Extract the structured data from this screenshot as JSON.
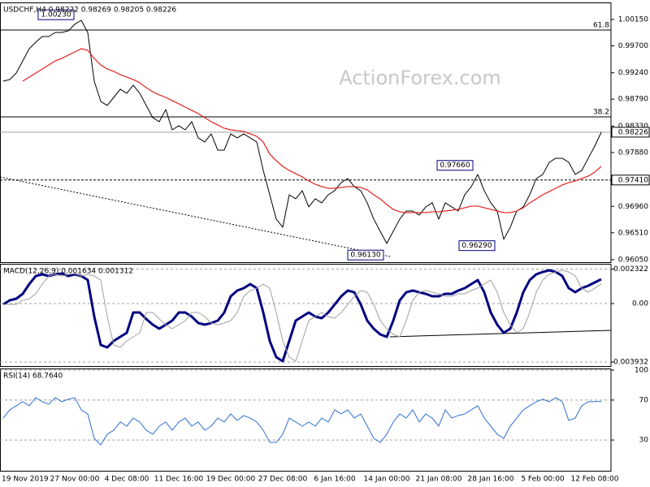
{
  "chart_data": [
    {
      "type": "line",
      "title": "USDCHF,H4  0.98222 0.98269 0.98205 0.98226",
      "watermark": "ActionForex.com",
      "categories": [
        "19 Nov 2019",
        null,
        null,
        null,
        null,
        null,
        null,
        null,
        null,
        null,
        null,
        "27 Nov 00:00",
        null,
        null,
        null,
        null,
        null,
        null,
        null,
        "4 Dec 08:00",
        null,
        null,
        null,
        null,
        null,
        null,
        null,
        "11 Dec 16:00",
        null,
        null,
        null,
        null,
        null,
        null,
        null,
        "19 Dec 00:00",
        null,
        null,
        null,
        null,
        null,
        null,
        null,
        "27 Dec 08:00",
        null,
        null,
        null,
        null,
        null,
        null,
        null,
        "6 Jan 16:00",
        null,
        null,
        null,
        null,
        null,
        null,
        null,
        "14 Jan 00:00",
        null,
        null,
        null,
        null,
        null,
        null,
        null,
        "21 Jan 08:00",
        null,
        null,
        null,
        null,
        null,
        null,
        null,
        "28 Jan 16:00",
        null,
        null,
        null,
        null,
        null,
        null,
        null,
        "5 Feb 00:00",
        null,
        null,
        null,
        null,
        null,
        null,
        null,
        "12 Feb 08:00",
        null
      ],
      "series": [
        {
          "color": "#000000",
          "line_width": 1,
          "values": [
            0.99097,
            0.99125,
            0.99236,
            0.99444,
            0.99651,
            0.99762,
            0.99859,
            0.99859,
            0.99928,
            0.99928,
            0.99956,
            1.00067,
            1.00136,
            0.99928,
            0.99097,
            0.98751,
            0.98682,
            0.9882,
            0.98959,
            0.9889,
            0.99028,
            0.9889,
            0.98682,
            0.98474,
            0.98405,
            0.98613,
            0.98266,
            0.98336,
            0.98266,
            0.98405,
            0.98128,
            0.98059,
            0.98197,
            0.9792,
            0.9792,
            0.98197,
            0.98128,
            0.98197,
            0.98128,
            0.98059,
            0.97574,
            0.97158,
            0.96743,
            0.96604,
            0.97158,
            0.97089,
            0.97228,
            0.96951,
            0.97089,
            0.9702,
            0.97158,
            0.97228,
            0.97366,
            0.97435,
            0.97297,
            0.97228,
            0.9702,
            0.96743,
            0.96535,
            0.96327,
            0.96535,
            0.96743,
            0.96881,
            0.96881,
            0.96812,
            0.96951,
            0.9702,
            0.96743,
            0.9702,
            0.96951,
            0.96881,
            0.97158,
            0.97297,
            0.97505,
            0.97228,
            0.9702,
            0.96881,
            0.96397,
            0.96604,
            0.96881,
            0.96951,
            0.97158,
            0.97435,
            0.97505,
            0.97712,
            0.97782,
            0.97782,
            0.97712,
            0.97505,
            0.97574,
            0.97782,
            0.97989,
            0.98226
          ]
        },
        {
          "color": "#e02020",
          "line_width": 1.2,
          "values": [
            null,
            null,
            null,
            0.99097,
            0.99167,
            0.99236,
            0.99305,
            0.99374,
            0.99444,
            0.99485,
            0.99541,
            0.99596,
            0.99651,
            0.99624,
            0.99485,
            0.99374,
            0.99305,
            0.99264,
            0.99208,
            0.99167,
            0.99125,
            0.9907,
            0.98987,
            0.98917,
            0.98862,
            0.9882,
            0.98765,
            0.9871,
            0.98654,
            0.98599,
            0.98543,
            0.98474,
            0.98405,
            0.9835,
            0.98294,
            0.98266,
            0.98253,
            0.98239,
            0.98197,
            0.98156,
            0.98059,
            0.97851,
            0.9774,
            0.97643,
            0.97574,
            0.97519,
            0.97463,
            0.97394,
            0.97338,
            0.97297,
            0.97269,
            0.97269,
            0.97283,
            0.97297,
            0.97297,
            0.97283,
            0.97242,
            0.97158,
            0.97089,
            0.96992,
            0.96909,
            0.96868,
            0.96854,
            0.96854,
            0.96854,
            0.96854,
            0.96868,
            0.96868,
            0.96881,
            0.96895,
            0.96909,
            0.96937,
            0.96965,
            0.96965,
            0.96937,
            0.96909,
            0.96881,
            0.96854,
            0.96854,
            0.96881,
            0.96937,
            0.9702,
            0.97089,
            0.97158,
            0.97214,
            0.97269,
            0.97325,
            0.97366,
            0.97394,
            0.97435,
            0.97477,
            0.97546,
            0.97643
          ]
        }
      ],
      "ylim": [
        0.96022,
        1.00413
      ],
      "yticks": [
        {
          "value": 1.0015,
          "label": "1.00150"
        },
        {
          "value": 0.997,
          "label": "0.99700"
        },
        {
          "value": 0.9924,
          "label": "0.99240"
        },
        {
          "value": 0.9879,
          "label": "0.98790"
        },
        {
          "value": 0.9833,
          "label": "0.98330"
        },
        {
          "value": 0.9788,
          "label": "0.97880"
        },
        {
          "value": 0.9696,
          "label": "0.96960"
        },
        {
          "value": 0.9651,
          "label": "0.96510"
        },
        {
          "value": 0.9605,
          "label": "0.96050"
        }
      ],
      "grid": false,
      "levels": [
        {
          "value": 0.9997,
          "label": "61.8"
        },
        {
          "value": 0.98488,
          "label": "38.2"
        }
      ],
      "price_markers": [
        {
          "value": 0.98226,
          "label": "0.98226",
          "color": "#a0a0a0",
          "dashed": false
        },
        {
          "value": 0.9741,
          "label": "0.97410",
          "color": "#000000",
          "dashed": true
        }
      ],
      "annotations": [
        {
          "value": 1.0023,
          "label": "1.00230"
        },
        {
          "value": 0.9613,
          "label": "0.96130"
        },
        {
          "value": 0.9766,
          "label": "0.97660"
        },
        {
          "value": 0.9629,
          "label": "0.96290"
        }
      ]
    },
    {
      "type": "line",
      "title": "MACD(12,26,9) 0.001634 0.001312",
      "series": [
        {
          "color": "#000080",
          "line_width": 3,
          "values": [
            -5.5e-05,
            0.000218,
            0.000328,
            0.000655,
            0.00131,
            0.001856,
            0.001966,
            0.001856,
            0.001966,
            0.00202,
            0.001856,
            0.001966,
            0.001856,
            0.001583,
            -0.000874,
            -0.002785,
            -0.002949,
            -0.002512,
            -0.002239,
            -0.001966,
            -0.000601,
            -0.000601,
            -0.001037,
            -0.00142,
            -0.001693,
            -0.00142,
            -0.001147,
            -0.000601,
            -0.000601,
            -0.000874,
            -0.00131,
            -0.00142,
            -0.00131,
            -0.001147,
            -0.000601,
            0.000491,
            0.000874,
            0.001037,
            0.00131,
            0.001037,
            -0.000601,
            -0.002512,
            -0.003604,
            -0.003877,
            -0.002512,
            -0.001147,
            -0.000874,
            -0.000601,
            -0.000874,
            -0.000983,
            -0.000601,
            -5.5e-05,
            0.000491,
            0.000874,
            0.000764,
            -5.5e-05,
            -0.001147,
            -0.001693,
            -0.002075,
            -0.002239,
            -0.001147,
            0.000218,
            0.000764,
            0.000874,
            0.000764,
            0.000655,
            0.000491,
            0.000491,
            0.000655,
            0.000655,
            0.000874,
            0.001037,
            0.00131,
            0.001583,
            0.000764,
            -0.000601,
            -0.00142,
            -0.001966,
            -0.001693,
            -0.000601,
            0.000764,
            0.001583,
            0.001966,
            0.002129,
            0.002239,
            0.002129,
            0.001856,
            0.001037,
            0.000764,
            0.001037,
            0.001201,
            0.00142,
            0.001634
          ]
        },
        {
          "color": "#a0a0a0",
          "line_width": 1,
          "values": [
            -5.5e-05,
            -5.5e-05,
            -5.5e-05,
            0.000218,
            0.000328,
            0.000655,
            0.00131,
            0.001856,
            0.001966,
            0.001856,
            0.001966,
            0.00202,
            0.001856,
            0.001966,
            0.001856,
            0.001583,
            -0.000874,
            -0.002785,
            -0.002949,
            -0.002512,
            -0.002239,
            -0.001966,
            -0.000601,
            -0.000601,
            -0.001037,
            -0.00142,
            -0.001693,
            -0.00142,
            -0.001147,
            -0.000601,
            -0.000601,
            -0.000874,
            -0.00131,
            -0.00142,
            -0.00131,
            -0.001147,
            -0.000601,
            0.000491,
            0.000874,
            0.001037,
            0.00131,
            0.001037,
            -0.000601,
            -0.002512,
            -0.003604,
            -0.003877,
            -0.002512,
            -0.001147,
            -0.000874,
            -0.000601,
            -0.000874,
            -0.000983,
            -0.000601,
            -5.5e-05,
            0.000491,
            0.000874,
            0.000764,
            -5.5e-05,
            -0.001147,
            -0.001693,
            -0.002075,
            -0.002239,
            -0.001147,
            0.000218,
            0.000764,
            0.000874,
            0.000764,
            0.000655,
            0.000491,
            0.000491,
            0.000655,
            0.000655,
            0.000874,
            0.001037,
            0.00131,
            0.001583,
            0.000764,
            -0.000601,
            -0.00142,
            -0.001966,
            -0.001693,
            -0.000601,
            0.000764,
            0.001583,
            0.001966,
            0.002129,
            0.002239,
            0.002129,
            0.001856,
            0.001037,
            0.000764,
            0.001037,
            0.001312
          ]
        }
      ],
      "ylim": [
        -0.00415,
        0.002567
      ],
      "yticks": [
        0.002322,
        {
          "value": 0,
          "label": "0.00"
        },
        -0.003932
      ],
      "grid": true
    },
    {
      "type": "line",
      "title": "RSI(14) 68.7640",
      "series": [
        {
          "color": "#2f6fd0",
          "line_width": 1,
          "values": [
            52.0,
            60.2,
            64.3,
            68.4,
            64.3,
            72.4,
            68.4,
            65.9,
            72.4,
            68.4,
            70.8,
            72.4,
            60.2,
            56.1,
            31.6,
            25.1,
            35.7,
            39.8,
            48.0,
            43.9,
            52.0,
            48.0,
            39.8,
            35.7,
            43.9,
            48.0,
            39.8,
            48.0,
            52.0,
            43.9,
            48.0,
            39.8,
            43.9,
            52.0,
            48.0,
            56.1,
            49.6,
            54.5,
            52.0,
            48.0,
            39.8,
            27.6,
            27.6,
            35.7,
            52.0,
            48.0,
            43.9,
            48.0,
            43.9,
            52.0,
            48.0,
            60.2,
            56.1,
            60.2,
            52.0,
            56.1,
            43.9,
            31.6,
            27.6,
            35.7,
            48.0,
            56.1,
            52.0,
            60.2,
            48.0,
            56.1,
            52.0,
            43.9,
            60.2,
            52.0,
            54.5,
            56.1,
            60.2,
            64.3,
            52.0,
            43.9,
            35.7,
            31.6,
            43.9,
            52.0,
            60.2,
            64.3,
            68.4,
            70.8,
            68.4,
            72.4,
            68.4,
            49.6,
            52.0,
            64.3,
            68.4,
            68.4,
            68.764
          ]
        }
      ],
      "ylim": [
        0,
        100
      ],
      "yticks": [
        100,
        70,
        30
      ],
      "grid": true
    }
  ]
}
